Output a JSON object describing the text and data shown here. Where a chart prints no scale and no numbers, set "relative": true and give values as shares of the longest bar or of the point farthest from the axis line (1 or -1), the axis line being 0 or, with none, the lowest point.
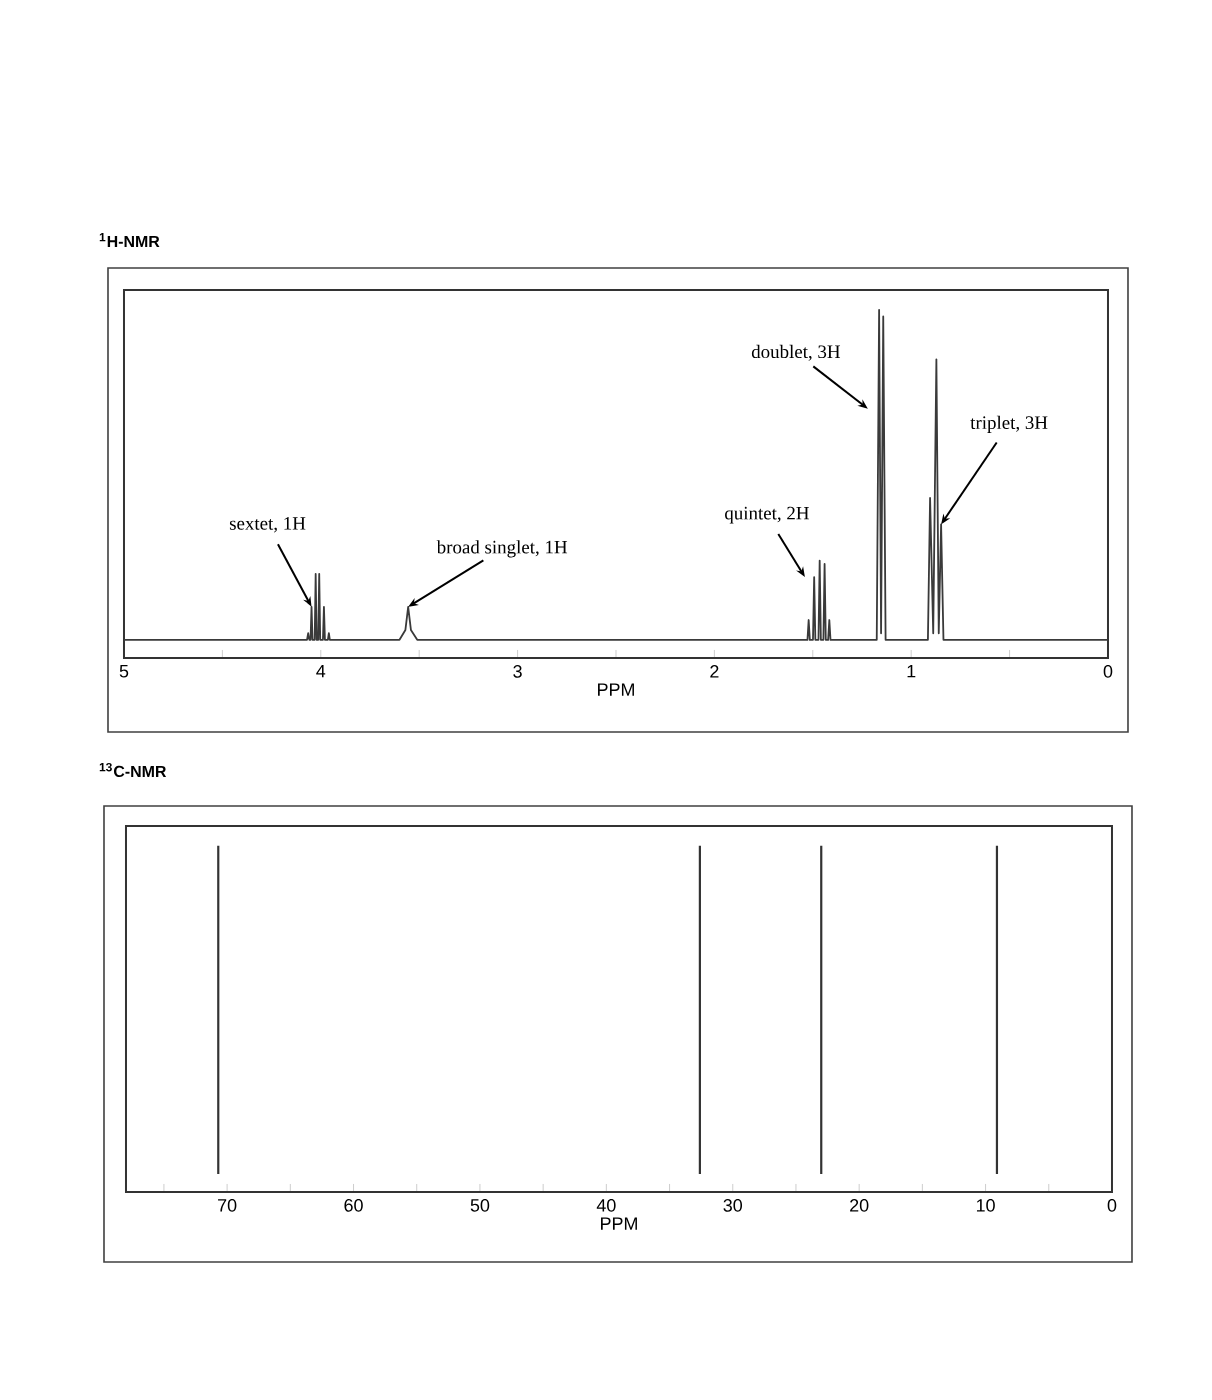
{
  "chart_data": [
    {
      "type": "line",
      "title": "$^{1}$H-NMR",
      "xlabel": "PPM",
      "relative": true,
      "xlim": [
        5,
        0
      ],
      "xticks": [
        5,
        {
          "value": 4.5,
          "label": null
        },
        4,
        {
          "value": 3.5,
          "label": null
        },
        3,
        {
          "value": 2.5,
          "label": null
        },
        2,
        {
          "value": 1.5,
          "label": null
        },
        1,
        {
          "value": 0.5,
          "label": null
        },
        0
      ],
      "series": [
        {
          "color": "#3a3a3a",
          "x": [
            5,
            4.07,
            4.064,
            4.058,
            4.052,
            4.047,
            4.042,
            4.031,
            4.026,
            4.021,
            4.013,
            4.008,
            4.003,
            3.989,
            3.984,
            3.979,
            3.964,
            3.959,
            3.954,
            3.6,
            3.57,
            3.556,
            3.542,
            3.51,
            1.527,
            1.521,
            1.515,
            1.499,
            1.493,
            1.487,
            1.471,
            1.465,
            1.459,
            1.446,
            1.44,
            1.434,
            1.422,
            1.416,
            1.41,
            1.175,
            1.163,
            1.153,
            1.142,
            1.13,
            0.915,
            0.904,
            0.888,
            0.872,
            0.86,
            0.848,
            0.836,
            0
          ],
          "values": [
            0,
            0,
            0.02,
            0,
            0,
            0.1,
            0,
            0,
            0.2,
            0,
            0,
            0.2,
            0,
            0,
            0.1,
            0,
            0,
            0.02,
            0,
            0,
            0.03,
            0.1,
            0.03,
            0,
            0,
            0.06,
            0,
            0,
            0.19,
            0,
            0,
            0.24,
            0,
            0,
            0.23,
            0,
            0,
            0.06,
            0,
            0,
            1.0,
            0.02,
            0.98,
            0,
            0,
            0.43,
            0.02,
            0.85,
            0.02,
            0.35,
            0,
            0
          ]
        }
      ],
      "annotations": [
        {
          "text": "sextet, 1H",
          "x": 4.047,
          "y": 0.1
        },
        {
          "text": "broad singlet, 1H",
          "x": 3.556,
          "y": 0.1
        },
        {
          "text": "quintet, 2H",
          "x": 1.54,
          "y": 0.19
        },
        {
          "text": "doublet, 3H",
          "x": 1.22,
          "y": 0.7
        },
        {
          "text": "triplet, 3H",
          "x": 0.848,
          "y": 0.35
        }
      ]
    },
    {
      "type": "bar",
      "title": "$^{13}$C-NMR",
      "xlabel": "PPM",
      "relative": true,
      "xlim": [
        78,
        0
      ],
      "xticks": [
        {
          "value": 75,
          "label": null
        },
        70,
        {
          "value": 65,
          "label": null
        },
        60,
        {
          "value": 55,
          "label": null
        },
        50,
        {
          "value": 45,
          "label": null
        },
        40,
        {
          "value": 35,
          "label": null
        },
        30,
        {
          "value": 25,
          "label": null
        },
        20,
        {
          "value": 15,
          "label": null
        },
        10,
        {
          "value": 5,
          "label": null
        },
        0
      ],
      "x": [
        70.7,
        32.6,
        23.0,
        9.1
      ],
      "values": [
        1,
        1,
        1,
        1
      ],
      "color": "#333333"
    }
  ]
}
